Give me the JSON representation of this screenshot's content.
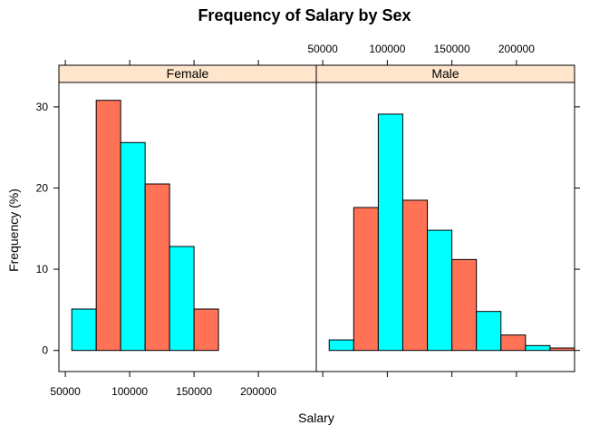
{
  "chart_data": {
    "type": "bar",
    "title": "Frequency of Salary by Sex",
    "xlabel": "Salary",
    "ylabel": "Frequency (%)",
    "xlim": [
      45000,
      245000
    ],
    "ylim": [
      -2.6,
      33
    ],
    "x_ticks": [
      50000,
      100000,
      150000,
      200000
    ],
    "y_ticks": [
      0,
      10,
      20,
      30
    ],
    "strip_color": "#FFE5CC",
    "colors": [
      "#00FFFF",
      "#FF7256"
    ],
    "panels": [
      {
        "name": "Female",
        "bins": [
          {
            "x0": 55000,
            "x1": 74000,
            "y": 5.1
          },
          {
            "x0": 74000,
            "x1": 93000,
            "y": 30.8
          },
          {
            "x0": 93000,
            "x1": 112000,
            "y": 25.6
          },
          {
            "x0": 112000,
            "x1": 131000,
            "y": 20.5
          },
          {
            "x0": 131000,
            "x1": 150000,
            "y": 12.8
          },
          {
            "x0": 150000,
            "x1": 169000,
            "y": 5.1
          },
          {
            "x0": 169000,
            "x1": 188000,
            "y": 0
          },
          {
            "x0": 188000,
            "x1": 207000,
            "y": 0
          },
          {
            "x0": 207000,
            "x1": 226000,
            "y": 0
          },
          {
            "x0": 226000,
            "x1": 245000,
            "y": 0
          }
        ]
      },
      {
        "name": "Male",
        "bins": [
          {
            "x0": 55000,
            "x1": 74000,
            "y": 1.3
          },
          {
            "x0": 74000,
            "x1": 93000,
            "y": 17.6
          },
          {
            "x0": 93000,
            "x1": 112000,
            "y": 29.1
          },
          {
            "x0": 112000,
            "x1": 131000,
            "y": 18.5
          },
          {
            "x0": 131000,
            "x1": 150000,
            "y": 14.8
          },
          {
            "x0": 150000,
            "x1": 169000,
            "y": 11.2
          },
          {
            "x0": 169000,
            "x1": 188000,
            "y": 4.8
          },
          {
            "x0": 188000,
            "x1": 207000,
            "y": 1.9
          },
          {
            "x0": 207000,
            "x1": 226000,
            "y": 0.6
          },
          {
            "x0": 226000,
            "x1": 245000,
            "y": 0.3
          }
        ]
      }
    ]
  }
}
